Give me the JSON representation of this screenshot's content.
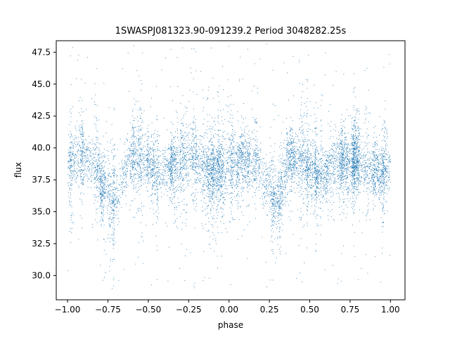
{
  "chart_data": {
    "type": "scatter",
    "title": "1SWASPJ081323.90-091239.2 Period 3048282.25s",
    "xlabel": "phase",
    "ylabel": "flux",
    "xlim": [
      -1.07,
      1.09
    ],
    "ylim": [
      28.1,
      48.4
    ],
    "x_ticks": [
      -1.0,
      -0.75,
      -0.5,
      -0.25,
      0.0,
      0.25,
      0.5,
      0.75,
      1.0
    ],
    "x_tick_labels": [
      "−1.00",
      "−0.75",
      "−0.50",
      "−0.25",
      "0.00",
      "0.25",
      "0.50",
      "0.75",
      "1.00"
    ],
    "y_ticks": [
      30.0,
      32.5,
      35.0,
      37.5,
      40.0,
      42.5,
      45.0,
      47.5
    ],
    "y_tick_labels": [
      "30.0",
      "32.5",
      "35.0",
      "37.5",
      "40.0",
      "42.5",
      "45.0",
      "47.5"
    ],
    "grid": false,
    "legend": "none",
    "series": [
      {
        "color": "#1f77b4",
        "x_range": [
          -1.0,
          1.0
        ],
        "typical_range": [
          35.0,
          41.0
        ],
        "extreme_range": [
          29.0,
          48.2
        ],
        "dense_band": [
          37.0,
          40.0
        ],
        "points_shown": "approximately 10000 (folded light curve, sampled representation)"
      }
    ]
  }
}
